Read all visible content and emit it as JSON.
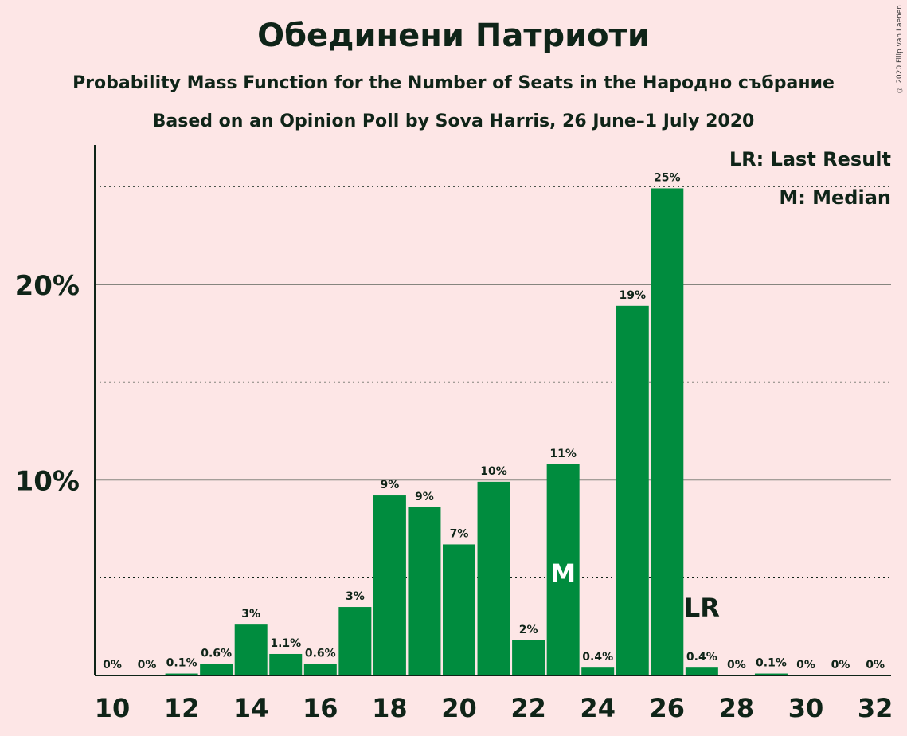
{
  "title": "Обединени Патриоти",
  "subtitle": "Probability Mass Function for the Number of Seats in the Народно събрание",
  "subtitle2": "Based on an Opinion Poll by Sova Harris, 26 June–1 July 2020",
  "legend": {
    "lr": "LR: Last Result",
    "median": "M: Median"
  },
  "copyright": "© 2020 Filip van Laenen",
  "colors": {
    "background": "#FDE6E6",
    "bar": "#008C3E",
    "text": "#0F2418"
  },
  "chart_data": {
    "type": "bar",
    "x": [
      10,
      11,
      12,
      13,
      14,
      15,
      16,
      17,
      18,
      19,
      20,
      21,
      22,
      23,
      24,
      25,
      26,
      27,
      28,
      29,
      30,
      31,
      32
    ],
    "values": [
      0,
      0,
      0.1,
      0.6,
      2.6,
      1.1,
      0.6,
      3.5,
      9.2,
      8.6,
      6.7,
      9.9,
      1.8,
      10.8,
      0.4,
      18.9,
      24.9,
      0.4,
      0,
      0.1,
      0,
      0,
      0
    ],
    "labels": [
      "0%",
      "0%",
      "0.1%",
      "0.6%",
      "3%",
      "1.1%",
      "0.6%",
      "3%",
      "9%",
      "9%",
      "7%",
      "10%",
      "2%",
      "11%",
      "0.4%",
      "19%",
      "25%",
      "0.4%",
      "0%",
      "0.1%",
      "0%",
      "0%",
      "0%"
    ],
    "x_ticks": [
      10,
      12,
      14,
      16,
      18,
      20,
      22,
      24,
      26,
      28,
      30,
      32
    ],
    "y_ticks": [
      {
        "value": 10,
        "label": "10%"
      },
      {
        "value": 20,
        "label": "20%"
      }
    ],
    "minor_gridlines": [
      5,
      15,
      25
    ],
    "ylim": [
      0,
      27
    ],
    "median_seat": 23,
    "median_label": "M",
    "last_result_seat": 27,
    "last_result_label": "LR"
  }
}
